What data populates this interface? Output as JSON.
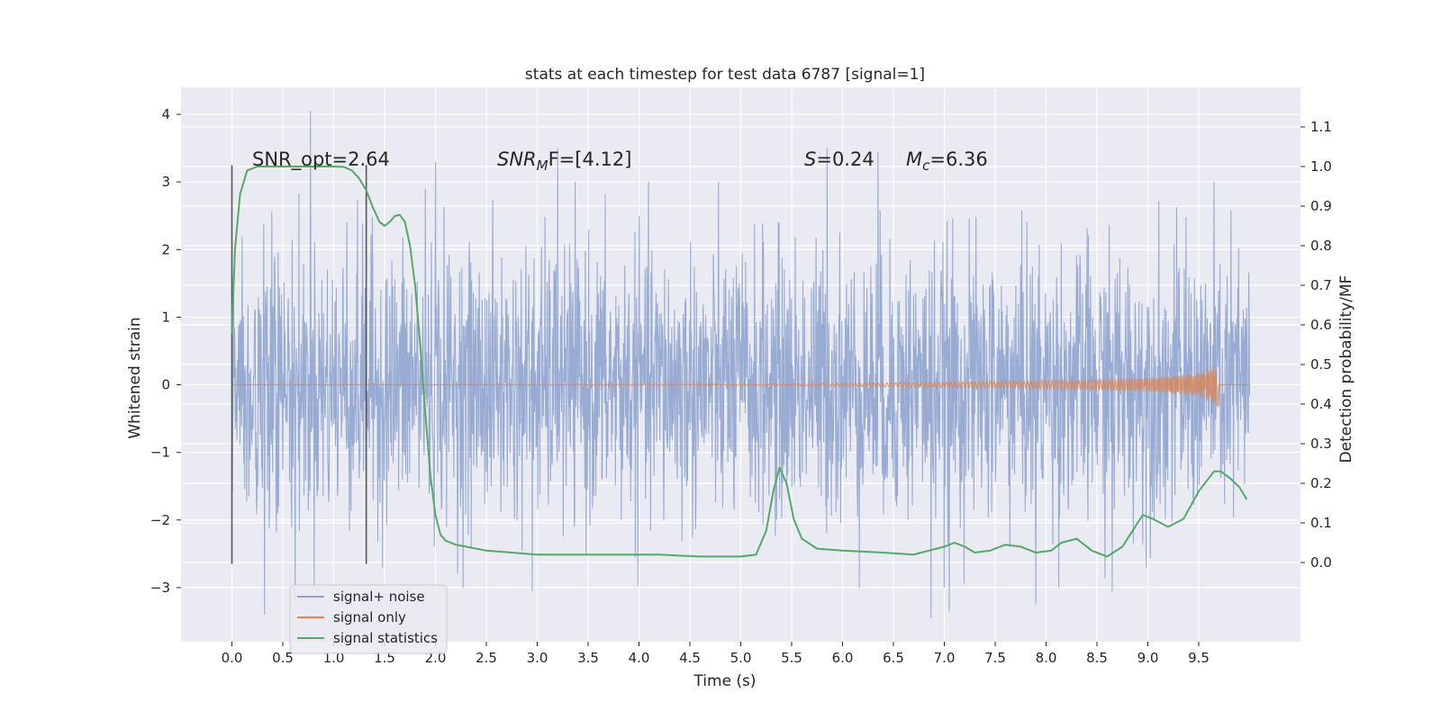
{
  "chart_data": {
    "type": "line",
    "title": "stats at each timestep for test data 6787 [signal=1]",
    "xlabel": "Time (s)",
    "ylabel": "Whitened strain",
    "y2label": "Detection probability/MF",
    "xlim": [
      -0.5,
      10.5
    ],
    "ylim": [
      -3.8,
      4.4
    ],
    "y2lim": [
      -0.2,
      1.2
    ],
    "x_ticks": [
      0.0,
      0.5,
      1.0,
      1.5,
      2.0,
      2.5,
      3.0,
      3.5,
      4.0,
      4.5,
      5.0,
      5.5,
      6.0,
      6.5,
      7.0,
      7.5,
      8.0,
      8.5,
      9.0,
      9.5
    ],
    "x_tick_labels": [
      "0.0",
      "0.5",
      "1.0",
      "1.5",
      "2.0",
      "2.5",
      "3.0",
      "3.5",
      "4.0",
      "4.5",
      "5.0",
      "5.5",
      "6.0",
      "6.5",
      "7.0",
      "7.5",
      "8.0",
      "8.5",
      "9.0",
      "9.5"
    ],
    "y_ticks": [
      -3,
      -2,
      -1,
      0,
      1,
      2,
      3,
      4
    ],
    "y_tick_labels": [
      "−3",
      "−2",
      "−1",
      "0",
      "1",
      "2",
      "3",
      "4"
    ],
    "y2_ticks": [
      0.0,
      0.1,
      0.2,
      0.3,
      0.4,
      0.5,
      0.6,
      0.7,
      0.8,
      0.9,
      1.0,
      1.1
    ],
    "y2_tick_labels": [
      "0.0",
      "0.1",
      "0.2",
      "0.3",
      "0.4",
      "0.5",
      "0.6",
      "0.7",
      "0.8",
      "0.9",
      "1.0",
      "1.1"
    ],
    "grid": true,
    "legend_position": "lower-left",
    "legend": [
      "signal+ noise",
      "signal only",
      "signal statistics"
    ],
    "colors": {
      "background": "#eaeaf2",
      "grid": "#ffffff",
      "noise": "#8fa4cf",
      "signal": "#dd8452",
      "stats": "#55a868",
      "vline": "#555555"
    },
    "annotations": {
      "snr_opt": "SNR_opt=2.64",
      "snr_mf_base": "SNR",
      "snr_mf_sub": "M",
      "snr_mf_tail": "F=[4.12]",
      "s_base": "S",
      "s_tail": "=0.24",
      "mc_base": "M",
      "mc_sub": "c",
      "mc_tail": "=6.36"
    },
    "vertical_lines": [
      {
        "x": 0.0,
        "y_range": [
          -2.65,
          3.25
        ]
      },
      {
        "x": 1.32,
        "y_range": [
          -2.65,
          3.25
        ]
      }
    ],
    "noise_series": {
      "name": "signal+ noise",
      "x_range": [
        0.0,
        10.0
      ],
      "typical_band": [
        -1.5,
        1.5
      ],
      "extremes": [
        {
          "x": 0.32,
          "y": -3.4
        },
        {
          "x": 0.62,
          "y": -3.2
        },
        {
          "x": 0.77,
          "y": 4.05
        },
        {
          "x": 1.13,
          "y": 2.4
        },
        {
          "x": 1.9,
          "y": 2.9
        },
        {
          "x": 2.0,
          "y": 3.3
        },
        {
          "x": 2.95,
          "y": -3.05
        },
        {
          "x": 3.2,
          "y": 3.5
        },
        {
          "x": 5.85,
          "y": 3.5
        },
        {
          "x": 6.35,
          "y": 3.45
        },
        {
          "x": 6.87,
          "y": -3.45
        },
        {
          "x": 7.05,
          "y": -3.35
        },
        {
          "x": 7.9,
          "y": -3.25
        },
        {
          "x": 8.65,
          "y": -3.05
        }
      ]
    },
    "signal_series": {
      "name": "signal only",
      "x_range": [
        0.0,
        10.0
      ],
      "envelope": [
        [
          0.0,
          0.0
        ],
        [
          3.0,
          0.005
        ],
        [
          5.0,
          0.01
        ],
        [
          6.0,
          0.02
        ],
        [
          7.0,
          0.04
        ],
        [
          8.0,
          0.06
        ],
        [
          9.0,
          0.1
        ],
        [
          9.5,
          0.17
        ],
        [
          9.65,
          0.28
        ],
        [
          9.69,
          0.32
        ],
        [
          9.7,
          0.0
        ]
      ]
    },
    "stats_series": {
      "name": "signal statistics",
      "x": [
        0.0,
        0.03,
        0.08,
        0.15,
        0.25,
        0.4,
        0.6,
        0.8,
        1.0,
        1.1,
        1.18,
        1.25,
        1.32,
        1.38,
        1.45,
        1.5,
        1.55,
        1.6,
        1.65,
        1.7,
        1.75,
        1.8,
        1.85,
        1.9,
        1.95,
        2.0,
        2.05,
        2.1,
        2.2,
        2.3,
        2.5,
        3.0,
        3.5,
        3.8,
        4.2,
        4.6,
        5.0,
        5.15,
        5.25,
        5.32,
        5.38,
        5.45,
        5.52,
        5.6,
        5.75,
        6.0,
        6.4,
        6.7,
        7.0,
        7.1,
        7.2,
        7.3,
        7.45,
        7.6,
        7.75,
        7.9,
        8.05,
        8.15,
        8.3,
        8.45,
        8.6,
        8.75,
        8.85,
        8.95,
        9.05,
        9.2,
        9.35,
        9.5,
        9.65,
        9.72,
        9.82,
        9.9,
        9.97
      ],
      "values": [
        0.58,
        0.79,
        0.93,
        0.99,
        1.0,
        1.0,
        1.0,
        1.0,
        1.0,
        0.999,
        0.99,
        0.97,
        0.94,
        0.9,
        0.86,
        0.85,
        0.86,
        0.875,
        0.878,
        0.86,
        0.8,
        0.7,
        0.55,
        0.38,
        0.22,
        0.12,
        0.07,
        0.055,
        0.045,
        0.04,
        0.03,
        0.02,
        0.02,
        0.02,
        0.02,
        0.015,
        0.015,
        0.02,
        0.08,
        0.18,
        0.24,
        0.2,
        0.11,
        0.06,
        0.035,
        0.03,
        0.025,
        0.02,
        0.04,
        0.05,
        0.04,
        0.025,
        0.03,
        0.045,
        0.04,
        0.025,
        0.03,
        0.05,
        0.06,
        0.03,
        0.015,
        0.04,
        0.08,
        0.12,
        0.11,
        0.09,
        0.11,
        0.18,
        0.23,
        0.23,
        0.21,
        0.19,
        0.16
      ]
    }
  }
}
